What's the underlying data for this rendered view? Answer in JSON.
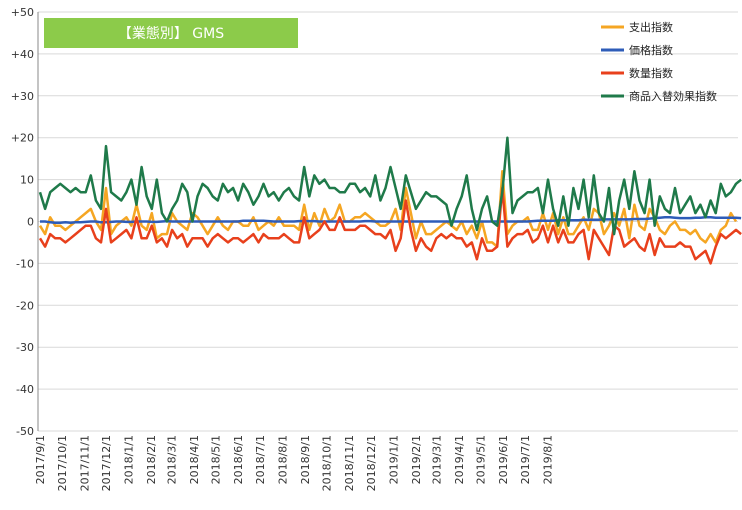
{
  "chart_data": {
    "type": "line",
    "title": "【業態別】 GMS",
    "title_bg_color": "#8CCB4A",
    "ylim": [
      -50,
      50
    ],
    "yticks": [
      -50,
      -40,
      -30,
      -20,
      -10,
      0,
      10,
      20,
      30,
      40,
      50
    ],
    "ytick_labels": [
      "-50",
      "-40",
      "-30",
      "-20",
      "-10",
      "0",
      "10",
      "+20",
      "+30",
      "+40",
      "+50"
    ],
    "grid": "horizontal",
    "legend_position": "top-right",
    "x_start": "2017-09-01",
    "x_interval_days": 7,
    "x_tick_labels": [
      "2017/9/1",
      "2017/10/1",
      "2017/11/1",
      "2017/12/1",
      "2018/1/1",
      "2018/2/1",
      "2018/3/1",
      "2018/4/1",
      "2018/5/1",
      "2018/6/1",
      "2018/7/1",
      "2018/8/1",
      "2018/9/1",
      "2018/10/1",
      "2018/11/1",
      "2018/12/1",
      "2019/1/1",
      "2019/2/1",
      "2019/3/1",
      "2019/4/1",
      "2019/5/1",
      "2019/6/1",
      "2019/7/1",
      "2019/8/1"
    ],
    "series": [
      {
        "name": "支出指数",
        "color": "#F5A623",
        "values": [
          -1,
          -3,
          1,
          -1,
          -1,
          -2,
          -1,
          0,
          1,
          2,
          3,
          0,
          -2,
          8,
          -3,
          -1,
          0,
          1,
          -1,
          4,
          -1,
          -2,
          2,
          -4,
          -3,
          -3,
          2,
          0,
          -1,
          -2,
          2,
          1,
          -1,
          -3,
          -1,
          1,
          -1,
          -2,
          0,
          0,
          -1,
          -1,
          1,
          -2,
          -1,
          0,
          -1,
          1,
          -1,
          -1,
          -1,
          -2,
          4,
          -2,
          2,
          -1,
          3,
          0,
          1,
          4,
          0,
          0,
          1,
          1,
          2,
          1,
          0,
          -1,
          -1,
          0,
          3,
          -2,
          8,
          2,
          -4,
          0,
          -3,
          -3,
          -2,
          -1,
          0,
          -1,
          -2,
          0,
          -3,
          -1,
          -4,
          0,
          -5,
          -5,
          -6,
          12,
          -3,
          -1,
          0,
          0,
          1,
          -2,
          -2,
          2,
          -2,
          2,
          -3,
          1,
          -3,
          -3,
          -1,
          1,
          -2,
          3,
          2,
          -3,
          -1,
          2,
          -1,
          3,
          -4,
          4,
          -1,
          -2,
          3,
          1,
          -2,
          -3,
          -1,
          0,
          -2,
          -2,
          -3,
          -2,
          -4,
          -5,
          -3,
          -5,
          -2,
          -1,
          2,
          0
        ]
      },
      {
        "name": "価格指数",
        "color": "#2E5CB8",
        "values": [
          0,
          0,
          -0.2,
          -0.3,
          -0.3,
          -0.2,
          -0.3,
          -0.2,
          -0.2,
          -0.1,
          0,
          0,
          -0.2,
          -0.2,
          -0.1,
          0,
          0,
          -0.1,
          -0.1,
          0,
          0,
          0,
          -0.1,
          -0.1,
          0,
          0.1,
          0,
          0,
          0,
          0,
          0,
          0,
          0,
          0,
          0,
          0,
          0,
          0,
          0,
          0,
          0.2,
          0.2,
          0.2,
          0.2,
          0.2,
          0.1,
          0,
          0,
          0,
          0,
          0,
          0.1,
          0.1,
          0.1,
          0.1,
          0,
          0,
          0,
          0,
          0,
          0,
          0,
          0,
          0,
          0.1,
          0.1,
          0,
          0,
          0,
          0,
          0,
          0,
          0,
          0,
          0,
          0,
          0,
          0,
          0,
          0,
          0,
          0,
          0,
          0,
          0,
          0,
          0,
          0,
          0,
          0,
          0,
          0,
          0,
          0,
          0,
          0,
          0,
          0.1,
          0.2,
          0.2,
          0.2,
          0.2,
          0.3,
          0.3,
          0.3,
          0.3,
          0.3,
          0.4,
          0.4,
          0.4,
          0.4,
          0.5,
          0.5,
          0.5,
          0.5,
          0.5,
          0.5,
          0.6,
          0.6,
          0.6,
          0.7,
          0.8,
          0.9,
          1,
          1,
          0.9,
          0.8,
          0.8,
          0.8,
          0.9,
          0.9,
          1,
          1,
          0.9,
          0.9,
          0.9,
          0.9,
          0.9,
          0.8
        ]
      },
      {
        "name": "数量指数",
        "color": "#E8401C",
        "values": [
          -4,
          -6,
          -3,
          -4,
          -4,
          -5,
          -4,
          -3,
          -2,
          -1,
          -1,
          -4,
          -5,
          3,
          -5,
          -4,
          -3,
          -2,
          -4,
          1,
          -4,
          -4,
          -1,
          -5,
          -4,
          -6,
          -2,
          -4,
          -3,
          -6,
          -4,
          -4,
          -4,
          -6,
          -4,
          -3,
          -4,
          -5,
          -4,
          -4,
          -5,
          -4,
          -3,
          -5,
          -3,
          -4,
          -4,
          -4,
          -3,
          -4,
          -5,
          -5,
          1,
          -4,
          -3,
          -2,
          0,
          -2,
          -2,
          1,
          -2,
          -2,
          -2,
          -1,
          -1,
          -2,
          -3,
          -3,
          -4,
          -2,
          -7,
          -4,
          5,
          -2,
          -7,
          -4,
          -6,
          -7,
          -4,
          -3,
          -4,
          -3,
          -4,
          -4,
          -6,
          -5,
          -9,
          -4,
          -7,
          -7,
          -6,
          8,
          -6,
          -4,
          -3,
          -3,
          -2,
          -5,
          -4,
          -1,
          -5,
          -1,
          -5,
          -2,
          -5,
          -5,
          -3,
          -2,
          -9,
          -2,
          -4,
          -6,
          -8,
          -1,
          -2,
          -6,
          -5,
          -4,
          -6,
          -7,
          -3,
          -8,
          -4,
          -6,
          -6,
          -6,
          -5,
          -6,
          -6,
          -9,
          -8,
          -7,
          -10,
          -6,
          -3,
          -4,
          -3,
          -2,
          -3
        ]
      },
      {
        "name": "商品入替効果指数",
        "color": "#1F7A4A",
        "values": [
          7,
          3,
          7,
          8,
          9,
          8,
          7,
          8,
          7,
          7,
          11,
          5,
          3,
          18,
          7,
          6,
          5,
          7,
          10,
          4,
          13,
          6,
          3,
          10,
          2,
          0,
          3,
          5,
          9,
          7,
          0,
          6,
          9,
          8,
          6,
          5,
          9,
          7,
          8,
          5,
          9,
          7,
          4,
          6,
          9,
          6,
          7,
          5,
          7,
          8,
          6,
          5,
          13,
          6,
          11,
          9,
          10,
          8,
          8,
          7,
          7,
          9,
          9,
          7,
          8,
          6,
          11,
          5,
          8,
          13,
          8,
          3,
          11,
          7,
          3,
          5,
          7,
          6,
          6,
          5,
          4,
          -1,
          3,
          6,
          11,
          3,
          -2,
          3,
          6,
          0,
          -1,
          7,
          20,
          2,
          5,
          6,
          7,
          7,
          8,
          2,
          10,
          3,
          -1,
          6,
          -1,
          8,
          3,
          10,
          1,
          11,
          2,
          0,
          8,
          -3,
          5,
          10,
          3,
          12,
          5,
          2,
          10,
          -1,
          6,
          3,
          2,
          8,
          2,
          4,
          6,
          2,
          4,
          1,
          5,
          2,
          9,
          6,
          7,
          9,
          10
        ]
      }
    ]
  }
}
